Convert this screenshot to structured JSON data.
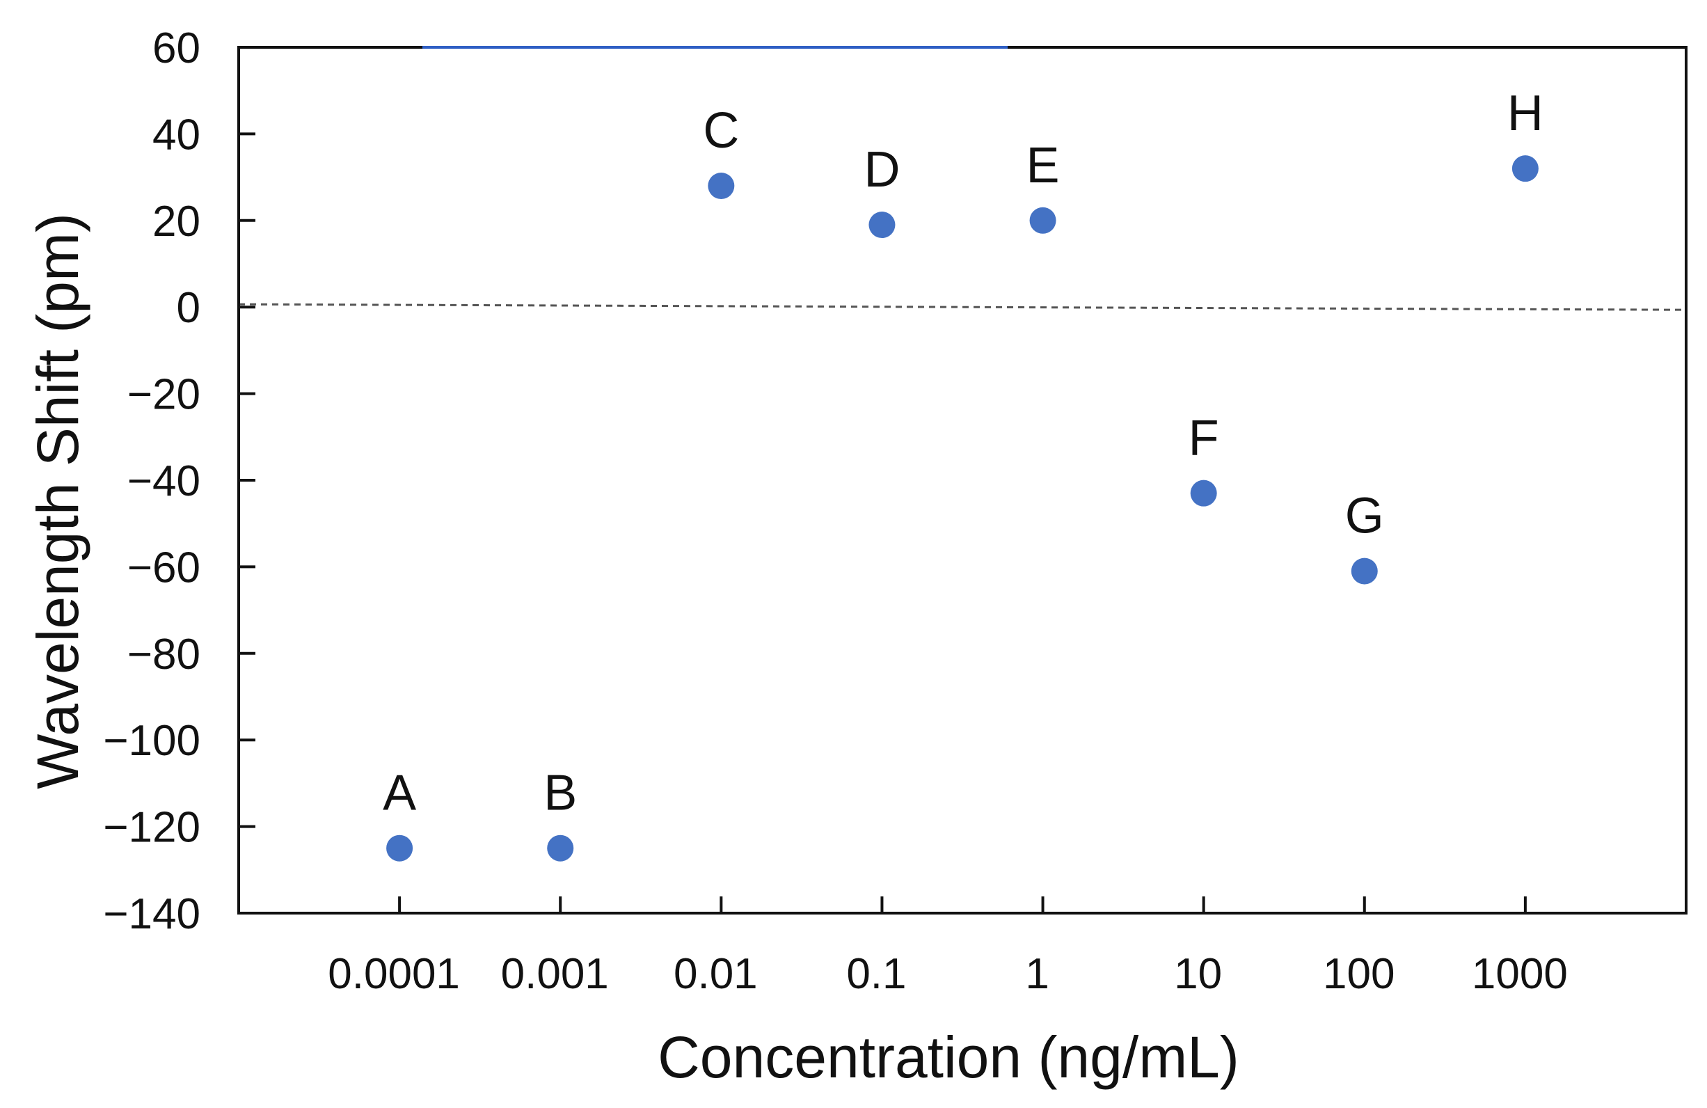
{
  "chart_data": {
    "type": "scatter",
    "title": "",
    "xlabel": "Concentration (ng/mL)",
    "ylabel": "Wavelength Shift (pm)",
    "x_scale": "log",
    "xlim": [
      1e-05,
      10000
    ],
    "ylim": [
      -140,
      60
    ],
    "y_ticks": [
      60,
      40,
      20,
      0,
      -20,
      -40,
      -60,
      -80,
      -100,
      -120,
      -140
    ],
    "y_tick_labels": [
      "60",
      "40",
      "20",
      "0",
      "−20",
      "−40",
      "−60",
      "−80",
      "−100",
      "−120",
      "−140"
    ],
    "x_ticks": [
      0.0001,
      0.001,
      0.01,
      0.1,
      1,
      10,
      100,
      1000
    ],
    "x_tick_labels": [
      "0.0001",
      "0.001",
      "0.01",
      "0.1",
      "1",
      "10",
      "100",
      "1000"
    ],
    "reference_line": {
      "y": 0,
      "style": "dashed"
    },
    "marker_color": "#4472C4",
    "points": [
      {
        "label": "A",
        "x": 0.0001,
        "y": -125
      },
      {
        "label": "B",
        "x": 0.001,
        "y": -125
      },
      {
        "label": "C",
        "x": 0.01,
        "y": 28
      },
      {
        "label": "D",
        "x": 0.1,
        "y": 19
      },
      {
        "label": "E",
        "x": 1,
        "y": 20
      },
      {
        "label": "F",
        "x": 10,
        "y": -43
      },
      {
        "label": "G",
        "x": 100,
        "y": -61
      },
      {
        "label": "H",
        "x": 1000,
        "y": 32
      }
    ],
    "grid": false,
    "legend": "none"
  }
}
